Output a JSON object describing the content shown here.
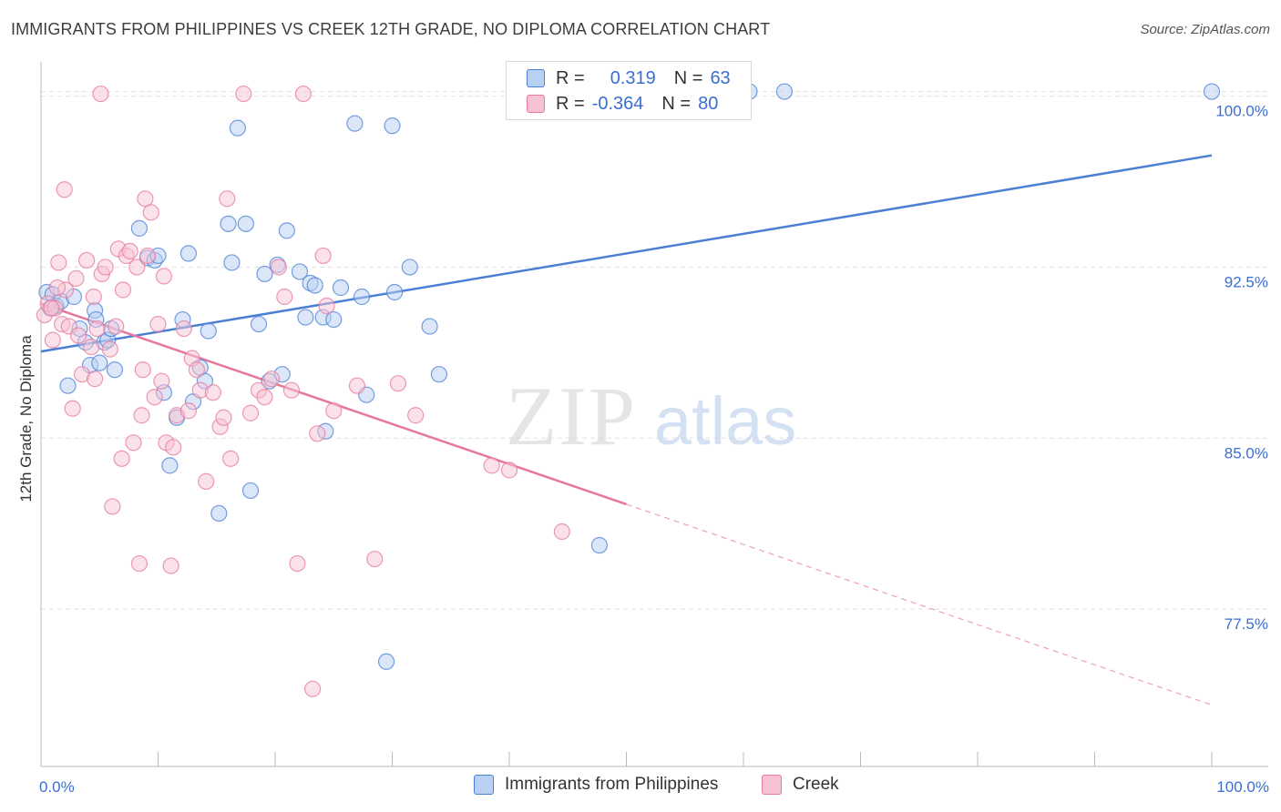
{
  "title": "IMMIGRANTS FROM PHILIPPINES VS CREEK 12TH GRADE, NO DIPLOMA CORRELATION CHART",
  "source": "Source: ZipAtlas.com",
  "watermark": {
    "zip": "ZIP",
    "atlas": "atlas"
  },
  "legend": {
    "r_label": "R =",
    "n_label": "N =",
    "rows": [
      {
        "r": "0.319",
        "n": "63",
        "color": "#4a7fd4"
      },
      {
        "r": "-0.364",
        "n": "80",
        "color": "#e6789c"
      }
    ]
  },
  "colors": {
    "blue": "#4a7fd4",
    "pink": "#e6789c",
    "blue_fill": "#b8d0f2",
    "pink_fill": "#f7c3d4",
    "grid": "#e0e0e0",
    "tick_text": "#3a6fd0"
  },
  "chart_data": {
    "type": "scatter",
    "title": "IMMIGRANTS FROM PHILIPPINES VS CREEK 12TH GRADE, NO DIPLOMA CORRELATION CHART",
    "xlabel": "",
    "ylabel": "12th Grade, No Diploma",
    "xlim": [
      0,
      100
    ],
    "ylim": [
      70.6,
      101.5
    ],
    "x_tick_labels": [
      "0.0%",
      "100.0%"
    ],
    "y_ticks": [
      77.5,
      85.0,
      92.5,
      100.0
    ],
    "y_tick_labels": [
      "77.5%",
      "85.0%",
      "92.5%",
      "100.0%"
    ],
    "grid": true,
    "legend_position": "top-center",
    "series": [
      {
        "name": "Immigrants from Philippines",
        "color": "#4a7fd4",
        "r": 0.319,
        "n": 63,
        "trend": {
          "x": [
            0,
            100
          ],
          "y": [
            88.8,
            97.4
          ],
          "dashed_from": null
        },
        "points": [
          [
            0.5,
            91.4
          ],
          [
            1.0,
            91.3
          ],
          [
            1.3,
            90.8
          ],
          [
            1.7,
            91.0
          ],
          [
            2.3,
            87.3
          ],
          [
            2.8,
            91.2
          ],
          [
            3.3,
            89.8
          ],
          [
            3.8,
            89.2
          ],
          [
            4.2,
            88.2
          ],
          [
            4.6,
            90.6
          ],
          [
            4.7,
            90.2
          ],
          [
            5.0,
            88.3
          ],
          [
            5.4,
            89.2
          ],
          [
            5.7,
            89.3
          ],
          [
            6.0,
            89.8
          ],
          [
            6.3,
            88.0
          ],
          [
            8.4,
            94.2
          ],
          [
            9.1,
            92.9
          ],
          [
            9.7,
            92.8
          ],
          [
            10.0,
            93.0
          ],
          [
            10.5,
            87.0
          ],
          [
            11.0,
            83.8
          ],
          [
            11.6,
            85.9
          ],
          [
            12.1,
            90.2
          ],
          [
            12.6,
            93.1
          ],
          [
            13.0,
            86.6
          ],
          [
            13.6,
            88.1
          ],
          [
            14.0,
            87.5
          ],
          [
            14.3,
            89.7
          ],
          [
            15.2,
            81.7
          ],
          [
            16.0,
            94.4
          ],
          [
            16.3,
            92.7
          ],
          [
            16.8,
            98.6
          ],
          [
            17.5,
            94.4
          ],
          [
            17.9,
            82.7
          ],
          [
            18.6,
            90.0
          ],
          [
            19.1,
            92.2
          ],
          [
            19.5,
            87.5
          ],
          [
            20.2,
            92.6
          ],
          [
            20.6,
            87.8
          ],
          [
            21.0,
            94.1
          ],
          [
            22.1,
            92.3
          ],
          [
            22.6,
            90.3
          ],
          [
            23.0,
            91.8
          ],
          [
            23.4,
            91.7
          ],
          [
            24.1,
            90.3
          ],
          [
            24.3,
            85.3
          ],
          [
            25.0,
            90.2
          ],
          [
            25.6,
            91.6
          ],
          [
            26.8,
            98.8
          ],
          [
            27.4,
            91.2
          ],
          [
            27.8,
            86.9
          ],
          [
            29.5,
            75.2
          ],
          [
            30.0,
            98.7
          ],
          [
            30.2,
            91.4
          ],
          [
            31.5,
            92.5
          ],
          [
            33.2,
            89.9
          ],
          [
            34.0,
            87.8
          ],
          [
            47.7,
            80.3
          ],
          [
            60.5,
            100.2
          ],
          [
            63.5,
            100.2
          ],
          [
            100.0,
            100.2
          ],
          [
            0.8,
            90.7
          ]
        ]
      },
      {
        "name": "Creek",
        "color": "#e6789c",
        "r": -0.364,
        "n": 80,
        "trend": {
          "x": [
            0,
            100
          ],
          "y": [
            90.9,
            73.3
          ],
          "dashed_from": 50
        },
        "points": [
          [
            0.3,
            90.4
          ],
          [
            0.6,
            90.9
          ],
          [
            1.0,
            89.3
          ],
          [
            1.2,
            90.7
          ],
          [
            1.5,
            92.7
          ],
          [
            1.8,
            90.0
          ],
          [
            2.1,
            91.5
          ],
          [
            2.4,
            89.9
          ],
          [
            2.7,
            86.3
          ],
          [
            3.0,
            92.0
          ],
          [
            3.2,
            89.5
          ],
          [
            3.5,
            87.8
          ],
          [
            3.9,
            92.8
          ],
          [
            4.3,
            89.0
          ],
          [
            4.5,
            91.2
          ],
          [
            4.6,
            87.6
          ],
          [
            4.8,
            89.8
          ],
          [
            5.2,
            92.2
          ],
          [
            5.5,
            92.5
          ],
          [
            5.9,
            88.9
          ],
          [
            6.1,
            82.0
          ],
          [
            6.4,
            89.9
          ],
          [
            6.6,
            93.3
          ],
          [
            6.9,
            84.1
          ],
          [
            7.0,
            91.5
          ],
          [
            7.3,
            93.0
          ],
          [
            7.6,
            93.2
          ],
          [
            7.9,
            84.8
          ],
          [
            8.2,
            92.5
          ],
          [
            8.4,
            79.5
          ],
          [
            8.6,
            86.0
          ],
          [
            8.7,
            88.0
          ],
          [
            8.9,
            95.5
          ],
          [
            9.1,
            93.0
          ],
          [
            9.4,
            94.9
          ],
          [
            9.7,
            86.8
          ],
          [
            10.0,
            90.0
          ],
          [
            10.3,
            87.5
          ],
          [
            10.5,
            92.1
          ],
          [
            10.7,
            84.8
          ],
          [
            11.1,
            79.4
          ],
          [
            11.3,
            84.6
          ],
          [
            11.6,
            86.0
          ],
          [
            12.2,
            89.8
          ],
          [
            12.6,
            86.2
          ],
          [
            12.9,
            88.5
          ],
          [
            13.3,
            88.0
          ],
          [
            13.6,
            87.1
          ],
          [
            14.1,
            83.1
          ],
          [
            14.7,
            87.0
          ],
          [
            15.3,
            85.5
          ],
          [
            15.6,
            85.9
          ],
          [
            15.9,
            95.5
          ],
          [
            16.2,
            84.1
          ],
          [
            17.3,
            100.1
          ],
          [
            17.9,
            86.1
          ],
          [
            18.6,
            87.1
          ],
          [
            19.1,
            86.8
          ],
          [
            19.7,
            87.6
          ],
          [
            20.3,
            92.5
          ],
          [
            20.8,
            91.2
          ],
          [
            21.4,
            87.1
          ],
          [
            21.9,
            79.5
          ],
          [
            22.4,
            100.1
          ],
          [
            23.2,
            74.0
          ],
          [
            23.6,
            85.2
          ],
          [
            24.1,
            93.0
          ],
          [
            24.4,
            90.8
          ],
          [
            25.0,
            86.2
          ],
          [
            27.0,
            87.3
          ],
          [
            28.5,
            79.7
          ],
          [
            30.5,
            87.4
          ],
          [
            32.0,
            86.0
          ],
          [
            38.5,
            83.8
          ],
          [
            40.0,
            83.6
          ],
          [
            44.5,
            80.9
          ],
          [
            2.0,
            95.9
          ],
          [
            5.1,
            100.1
          ],
          [
            0.9,
            90.7
          ],
          [
            1.4,
            91.6
          ]
        ]
      }
    ]
  },
  "legend_bottom": [
    "Immigrants from Philippines",
    "Creek"
  ]
}
